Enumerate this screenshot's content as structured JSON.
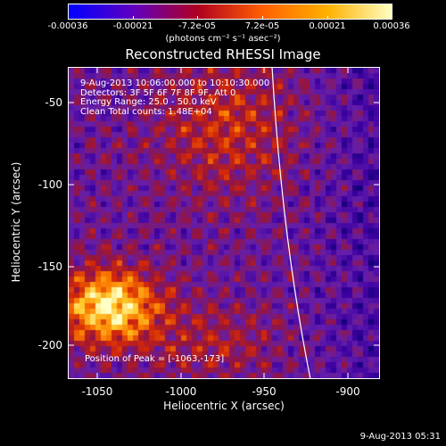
{
  "colorbar": {
    "tick_labels": [
      "-0.00036",
      "-0.00021",
      "-7.2e-05",
      "7.2e-05",
      "0.00021",
      "0.00036"
    ],
    "units": "(photons cm⁻² s⁻¹ asec⁻²)",
    "colors": [
      "#0000ff",
      "#6000c0",
      "#b00020",
      "#ff6000",
      "#ffb000",
      "#ffffc0"
    ]
  },
  "title": "Reconstructed RHESSI Image",
  "info": {
    "time_range": "9-Aug-2013 10:06:00.000 to 10:10:30.000",
    "detectors": "Detectors: 3F 5F 6F 7F 8F 9F, Att 0",
    "energy_range": "Energy Range: 25.0 - 50.0 keV",
    "clean_counts": "Clean     Total counts: 1.48E+04"
  },
  "peak": "Position of Peak = [-1063,-173]",
  "axes": {
    "xlabel": "Heliocentric X (arcsec)",
    "ylabel": "Heliocentric Y (arcsec)",
    "xticks": [
      "-1050",
      "-1000",
      "-950",
      "-900"
    ],
    "yticks": [
      "-50",
      "-100",
      "-150",
      "-200"
    ]
  },
  "timestamp": "9-Aug-2013 05:31"
}
